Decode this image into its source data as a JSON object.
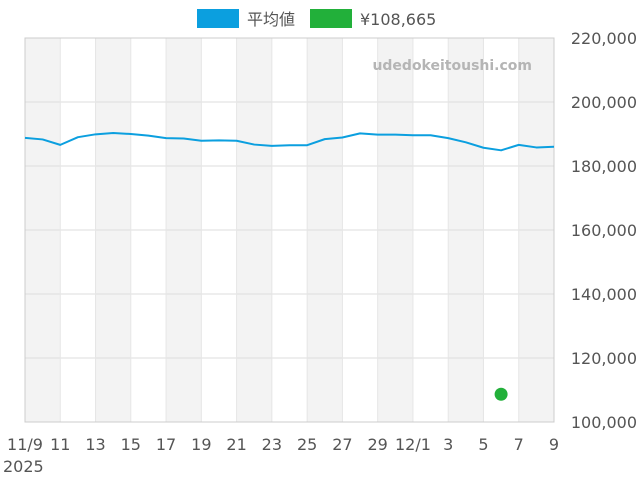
{
  "chart_data": {
    "type": "line",
    "legend_position": "top",
    "grid": true,
    "watermark": "udedokeitoushi.com",
    "x_tick_labels": [
      "11/9",
      "11",
      "13",
      "15",
      "17",
      "19",
      "21",
      "23",
      "25",
      "27",
      "29",
      "12/1",
      "3",
      "5",
      "7",
      "9"
    ],
    "x_year_label": "2025",
    "y_tick_labels": [
      "220,000",
      "200,000",
      "180,000",
      "160,000",
      "140,000",
      "120,000",
      "100,000"
    ],
    "ylim": [
      100000,
      220000
    ],
    "series": [
      {
        "name": "平均値",
        "color": "#0b9fdf",
        "x": [
          "2025-11-09",
          "2025-11-10",
          "2025-11-11",
          "2025-11-12",
          "2025-11-13",
          "2025-11-14",
          "2025-11-15",
          "2025-11-16",
          "2025-11-17",
          "2025-11-18",
          "2025-11-19",
          "2025-11-20",
          "2025-11-21",
          "2025-11-22",
          "2025-11-23",
          "2025-11-24",
          "2025-11-25",
          "2025-11-26",
          "2025-11-27",
          "2025-11-28",
          "2025-11-29",
          "2025-11-30",
          "2025-12-01",
          "2025-12-02",
          "2025-12-03",
          "2025-12-04",
          "2025-12-05",
          "2025-12-06",
          "2025-12-07",
          "2025-12-08",
          "2025-12-09"
        ],
        "values": [
          188800,
          188300,
          186600,
          189000,
          189900,
          190300,
          190000,
          189500,
          188700,
          188600,
          187900,
          188000,
          187900,
          186700,
          186300,
          186500,
          186500,
          188400,
          188900,
          190200,
          189800,
          189800,
          189600,
          189600,
          188700,
          187400,
          185700,
          184900,
          186600,
          185800,
          186000
        ]
      },
      {
        "name": "¥108,665",
        "color": "#22b03a",
        "x": [
          "2025-12-06"
        ],
        "values": [
          108665
        ]
      }
    ]
  }
}
